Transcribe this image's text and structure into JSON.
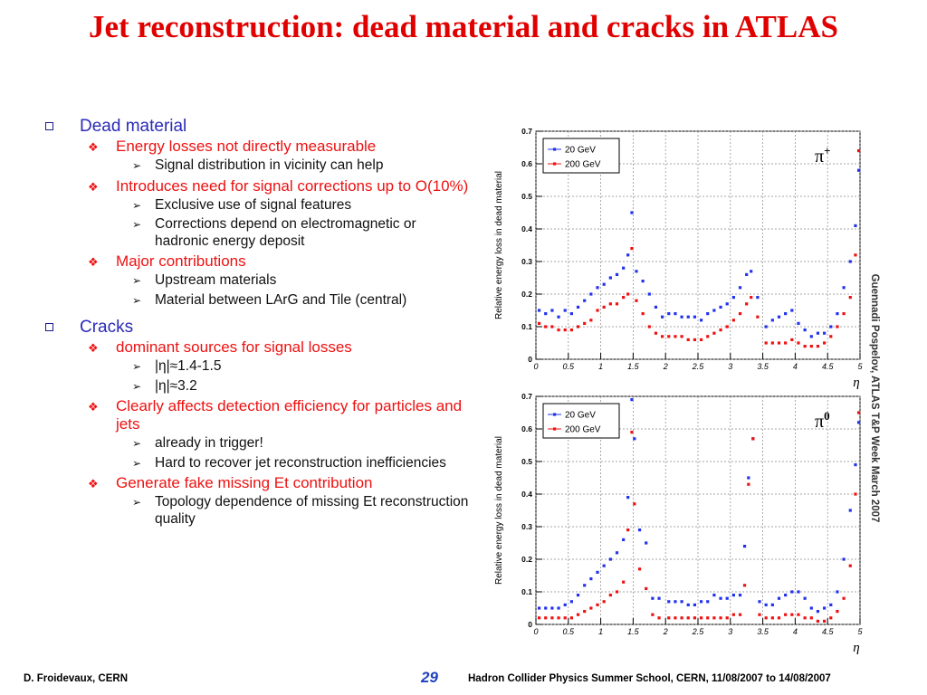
{
  "title": "Jet reconstruction: dead material and cracks in ATLAS",
  "outline": [
    {
      "text": "Dead material",
      "subs": [
        {
          "text": "Energy losses not directly measurable",
          "items": [
            "Signal distribution in vicinity can help"
          ]
        },
        {
          "text": "Introduces need for signal corrections up to O(10%)",
          "items": [
            "Exclusive use of signal features",
            "Corrections depend on electromagnetic or hadronic energy deposit"
          ]
        },
        {
          "text": "Major contributions",
          "items": [
            "Upstream materials",
            "Material between LArG and Tile (central)"
          ]
        }
      ]
    },
    {
      "text": "Cracks",
      "subs": [
        {
          "text": "dominant sources for signal losses",
          "items": [
            "|η|≈1.4-1.5",
            "|η|≈3.2"
          ]
        },
        {
          "text": "Clearly affects detection efficiency for particles and jets",
          "items": [
            "already in trigger!",
            "Hard to recover jet reconstruction inefficiencies"
          ]
        },
        {
          "text": "Generate fake missing Et contribution",
          "items": [
            "Topology dependence of missing Et reconstruction quality"
          ]
        }
      ]
    }
  ],
  "footer": {
    "left": "D. Froidevaux, CERN",
    "page": "29",
    "right": "Hadron Collider Physics Summer School, CERN, 11/08/2007 to 14/08/2007"
  },
  "credit": "Guennadi Pospelov, ATLAS T&P Week March 2007",
  "colors": {
    "series_20": "#2233ee",
    "series_200": "#ee1111",
    "title": "#e00000"
  },
  "chart_data": [
    {
      "type": "scatter",
      "particle_label": "π+",
      "xlabel": "η",
      "ylabel": "Relative energy loss in dead material",
      "xlim": [
        0,
        5
      ],
      "ylim": [
        0,
        0.7
      ],
      "xticks": [
        "0",
        "0.5",
        "1",
        "1.5",
        "2",
        "2.5",
        "3",
        "3.5",
        "4",
        "4.5",
        "5"
      ],
      "yticks": [
        "0",
        "0.1",
        "0.2",
        "0.3",
        "0.4",
        "0.5",
        "0.6",
        "0.7"
      ],
      "grid": true,
      "legend_position": "top-left",
      "series": [
        {
          "name": "20 GeV",
          "color": "#2233ee",
          "x": [
            0.05,
            0.15,
            0.25,
            0.35,
            0.45,
            0.55,
            0.65,
            0.75,
            0.85,
            0.95,
            1.05,
            1.15,
            1.25,
            1.35,
            1.42,
            1.48,
            1.55,
            1.65,
            1.75,
            1.85,
            1.95,
            2.05,
            2.15,
            2.25,
            2.35,
            2.45,
            2.55,
            2.65,
            2.75,
            2.85,
            2.95,
            3.05,
            3.15,
            3.25,
            3.32,
            3.42,
            3.55,
            3.65,
            3.75,
            3.85,
            3.95,
            4.05,
            4.15,
            4.25,
            4.35,
            4.45,
            4.55,
            4.65,
            4.75,
            4.85,
            4.93,
            4.98
          ],
          "y": [
            0.15,
            0.14,
            0.15,
            0.13,
            0.15,
            0.14,
            0.16,
            0.18,
            0.2,
            0.22,
            0.23,
            0.25,
            0.26,
            0.28,
            0.32,
            0.45,
            0.27,
            0.24,
            0.2,
            0.16,
            0.13,
            0.14,
            0.14,
            0.13,
            0.13,
            0.13,
            0.12,
            0.14,
            0.15,
            0.16,
            0.17,
            0.19,
            0.22,
            0.26,
            0.27,
            0.19,
            0.1,
            0.12,
            0.13,
            0.14,
            0.15,
            0.11,
            0.09,
            0.07,
            0.08,
            0.08,
            0.1,
            0.14,
            0.22,
            0.3,
            0.41,
            0.58
          ]
        },
        {
          "name": "200 GeV",
          "color": "#ee1111",
          "x": [
            0.05,
            0.15,
            0.25,
            0.35,
            0.45,
            0.55,
            0.65,
            0.75,
            0.85,
            0.95,
            1.05,
            1.15,
            1.25,
            1.35,
            1.42,
            1.48,
            1.55,
            1.65,
            1.75,
            1.85,
            1.95,
            2.05,
            2.15,
            2.25,
            2.35,
            2.45,
            2.55,
            2.65,
            2.75,
            2.85,
            2.95,
            3.05,
            3.15,
            3.25,
            3.32,
            3.42,
            3.55,
            3.65,
            3.75,
            3.85,
            3.95,
            4.05,
            4.15,
            4.25,
            4.35,
            4.45,
            4.55,
            4.65,
            4.75,
            4.85,
            4.93,
            4.98
          ],
          "y": [
            0.11,
            0.1,
            0.1,
            0.09,
            0.09,
            0.09,
            0.1,
            0.11,
            0.12,
            0.15,
            0.16,
            0.17,
            0.17,
            0.19,
            0.2,
            0.34,
            0.18,
            0.14,
            0.1,
            0.08,
            0.07,
            0.07,
            0.07,
            0.07,
            0.06,
            0.06,
            0.06,
            0.07,
            0.08,
            0.09,
            0.1,
            0.12,
            0.14,
            0.17,
            0.19,
            0.13,
            0.05,
            0.05,
            0.05,
            0.05,
            0.06,
            0.05,
            0.04,
            0.04,
            0.04,
            0.05,
            0.07,
            0.1,
            0.14,
            0.19,
            0.32,
            0.64
          ]
        }
      ]
    },
    {
      "type": "scatter",
      "particle_label": "π0",
      "xlabel": "η",
      "ylabel": "Relative energy loss in dead material",
      "xlim": [
        0,
        5
      ],
      "ylim": [
        0,
        0.7
      ],
      "xticks": [
        "0",
        "0.5",
        "1",
        "1.5",
        "2",
        "2.5",
        "3",
        "3.5",
        "4",
        "4.5",
        "5"
      ],
      "yticks": [
        "0",
        "0.1",
        "0.2",
        "0.3",
        "0.4",
        "0.5",
        "0.6",
        "0.7"
      ],
      "grid": true,
      "legend_position": "top-left",
      "series": [
        {
          "name": "20 GeV",
          "color": "#2233ee",
          "x": [
            0.05,
            0.15,
            0.25,
            0.35,
            0.45,
            0.55,
            0.65,
            0.75,
            0.85,
            0.95,
            1.05,
            1.15,
            1.25,
            1.35,
            1.42,
            1.48,
            1.52,
            1.6,
            1.7,
            1.8,
            1.9,
            2.05,
            2.15,
            2.25,
            2.35,
            2.45,
            2.55,
            2.65,
            2.75,
            2.85,
            2.95,
            3.05,
            3.15,
            3.22,
            3.28,
            3.35,
            3.45,
            3.55,
            3.65,
            3.75,
            3.85,
            3.95,
            4.05,
            4.15,
            4.25,
            4.35,
            4.45,
            4.55,
            4.65,
            4.75,
            4.85,
            4.93,
            4.98
          ],
          "y": [
            0.05,
            0.05,
            0.05,
            0.05,
            0.06,
            0.07,
            0.09,
            0.12,
            0.14,
            0.16,
            0.18,
            0.2,
            0.22,
            0.26,
            0.39,
            0.69,
            0.57,
            0.29,
            0.25,
            0.08,
            0.08,
            0.07,
            0.07,
            0.07,
            0.06,
            0.06,
            0.07,
            0.07,
            0.09,
            0.08,
            0.08,
            0.09,
            0.09,
            0.24,
            0.45,
            0.57,
            0.07,
            0.06,
            0.06,
            0.08,
            0.09,
            0.1,
            0.1,
            0.08,
            0.05,
            0.04,
            0.05,
            0.06,
            0.1,
            0.2,
            0.35,
            0.49,
            0.62
          ]
        },
        {
          "name": "200 GeV",
          "color": "#ee1111",
          "x": [
            0.05,
            0.15,
            0.25,
            0.35,
            0.45,
            0.55,
            0.65,
            0.75,
            0.85,
            0.95,
            1.05,
            1.15,
            1.25,
            1.35,
            1.42,
            1.48,
            1.52,
            1.6,
            1.7,
            1.8,
            1.9,
            2.05,
            2.15,
            2.25,
            2.35,
            2.45,
            2.55,
            2.65,
            2.75,
            2.85,
            2.95,
            3.05,
            3.15,
            3.22,
            3.28,
            3.35,
            3.45,
            3.55,
            3.65,
            3.75,
            3.85,
            3.95,
            4.05,
            4.15,
            4.25,
            4.35,
            4.45,
            4.55,
            4.65,
            4.75,
            4.85,
            4.93,
            4.98
          ],
          "y": [
            0.02,
            0.02,
            0.02,
            0.02,
            0.02,
            0.02,
            0.03,
            0.04,
            0.05,
            0.06,
            0.07,
            0.09,
            0.1,
            0.13,
            0.29,
            0.59,
            0.37,
            0.17,
            0.11,
            0.03,
            0.02,
            0.02,
            0.02,
            0.02,
            0.02,
            0.02,
            0.02,
            0.02,
            0.02,
            0.02,
            0.02,
            0.03,
            0.03,
            0.12,
            0.43,
            0.57,
            0.03,
            0.02,
            0.02,
            0.02,
            0.03,
            0.03,
            0.03,
            0.02,
            0.02,
            0.01,
            0.01,
            0.02,
            0.04,
            0.08,
            0.18,
            0.4,
            0.65
          ]
        }
      ]
    }
  ]
}
